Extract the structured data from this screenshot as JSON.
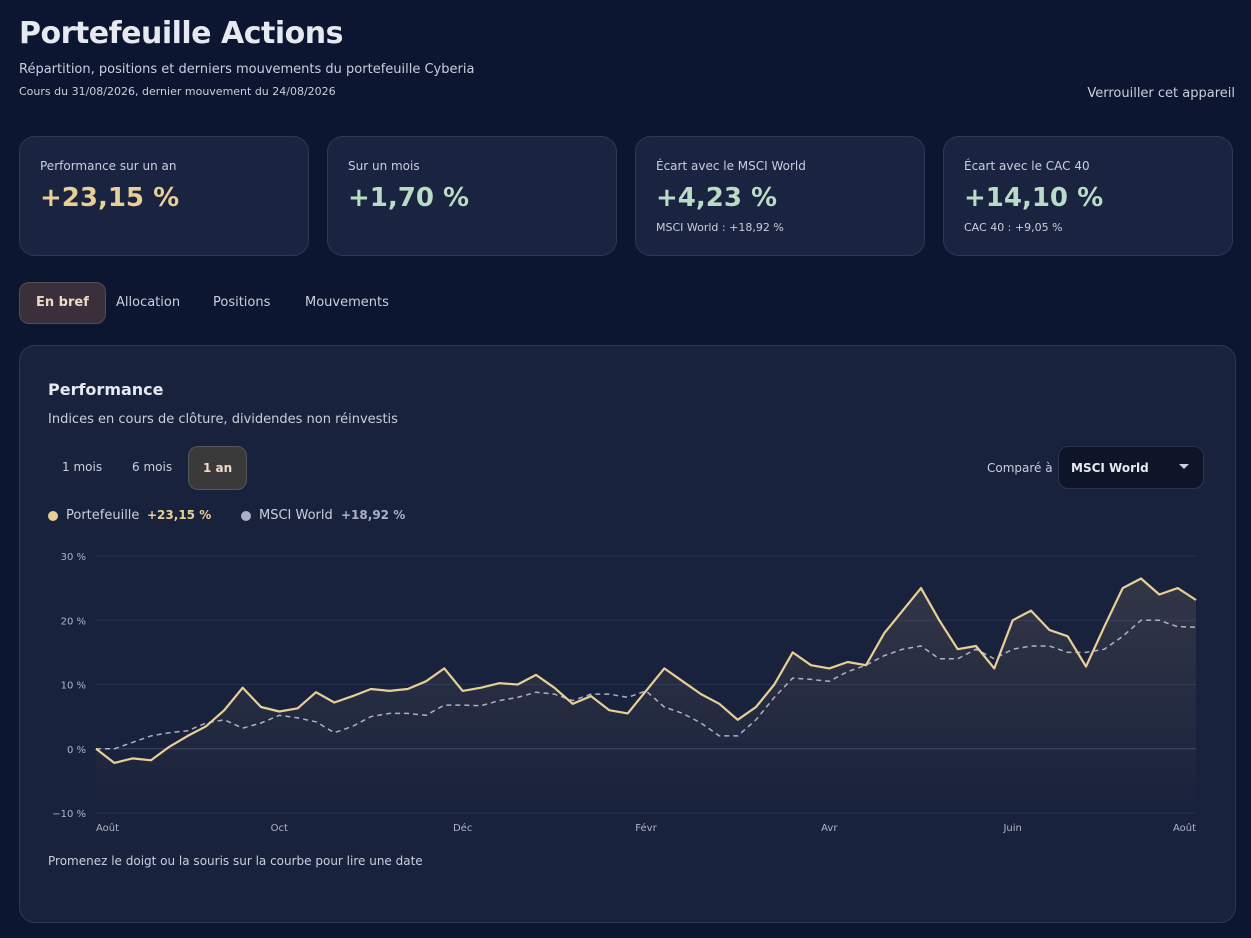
{
  "header": {
    "title": "Portefeuille Actions",
    "subtitle": "Répartition, positions et derniers mouvements du portefeuille Cyberia",
    "dates": "Cours du 31/08/2026, dernier mouvement du 24/08/2026",
    "lock": "Verrouiller cet appareil"
  },
  "cards": [
    {
      "label": "Performance sur un an",
      "value": "+23,15 %"
    },
    {
      "label": "Sur un mois",
      "value": "+1,70 %"
    },
    {
      "label": "Écart avec le MSCI World",
      "value": "+4,23 %",
      "note": "MSCI World : +18,92 %"
    },
    {
      "label": "Écart avec le CAC 40",
      "value": "+14,10 %",
      "note": "CAC 40 : +9,05 %"
    }
  ],
  "tabs": [
    "En bref",
    "Allocation",
    "Positions",
    "Mouvements"
  ],
  "panel": {
    "title": "Performance",
    "subtitle": "Indices en cours de clôture, dividendes non réinvestis",
    "ranges": [
      "1 mois",
      "6 mois",
      "1 an"
    ],
    "compare_label": "Comparé à",
    "compare_value": "MSCI World",
    "hint": "Promenez le doigt ou la souris sur la courbe pour lire une date"
  },
  "chart_data": {
    "type": "line",
    "categories": [
      "Août",
      null,
      null,
      null,
      null,
      null,
      null,
      null,
      null,
      null,
      "Oct",
      null,
      null,
      null,
      null,
      null,
      null,
      null,
      null,
      null,
      "Déc",
      null,
      null,
      null,
      null,
      null,
      null,
      null,
      null,
      null,
      "Févr",
      null,
      null,
      null,
      null,
      null,
      null,
      null,
      null,
      null,
      "Avr",
      null,
      null,
      null,
      null,
      null,
      null,
      null,
      null,
      null,
      "Juin",
      null,
      null,
      null,
      null,
      null,
      null,
      null,
      null,
      null,
      "Août"
    ],
    "series": [
      {
        "name": "Portefeuille",
        "legend_label": "+23,15 %",
        "color": "#e8cf95",
        "values": [
          0,
          -2.2,
          -1.5,
          -1.8,
          0.3,
          2,
          3.5,
          6,
          9.5,
          6.5,
          5.8,
          6.3,
          8.8,
          7.2,
          8.2,
          9.3,
          9,
          9.3,
          10.5,
          12.5,
          9,
          9.5,
          10.2,
          10,
          11.5,
          9.5,
          7,
          8.2,
          6,
          5.5,
          9,
          12.5,
          10.5,
          8.5,
          7,
          4.5,
          6.5,
          10,
          15,
          13,
          12.5,
          13.5,
          13,
          18,
          21.5,
          25,
          20,
          15.5,
          16,
          12.5,
          20,
          21.5,
          18.5,
          17.5,
          12.8,
          19,
          25,
          26.5,
          24,
          25,
          23.15
        ]
      },
      {
        "name": "MSCI World",
        "legend_label": "+18,92 %",
        "color": "#a9b1c6",
        "dashed": true,
        "values": [
          0,
          0,
          1,
          2,
          2.5,
          2.8,
          4,
          4.5,
          3.2,
          4,
          5.2,
          4.8,
          4.2,
          2.5,
          3.5,
          5,
          5.5,
          5.5,
          5.2,
          6.8,
          6.8,
          6.7,
          7.5,
          8,
          8.8,
          8.5,
          7.5,
          8.5,
          8.5,
          8,
          9,
          6.5,
          5.5,
          4,
          2,
          2,
          4.5,
          8,
          11,
          10.8,
          10.5,
          12,
          13,
          14.5,
          15.5,
          16,
          14,
          14,
          15.5,
          14,
          15.5,
          16,
          16,
          15,
          15,
          15.5,
          17.5,
          20,
          20,
          19,
          18.92
        ]
      }
    ],
    "ylim": [
      -10,
      30
    ],
    "yticks": [
      {
        "value": 30,
        "label": "30 %"
      },
      {
        "value": 20,
        "label": "20 %"
      },
      {
        "value": 10,
        "label": "10 %"
      },
      {
        "value": 0,
        "label": "0 %"
      },
      {
        "value": -10,
        "label": "−10 %"
      }
    ],
    "grid": true
  }
}
